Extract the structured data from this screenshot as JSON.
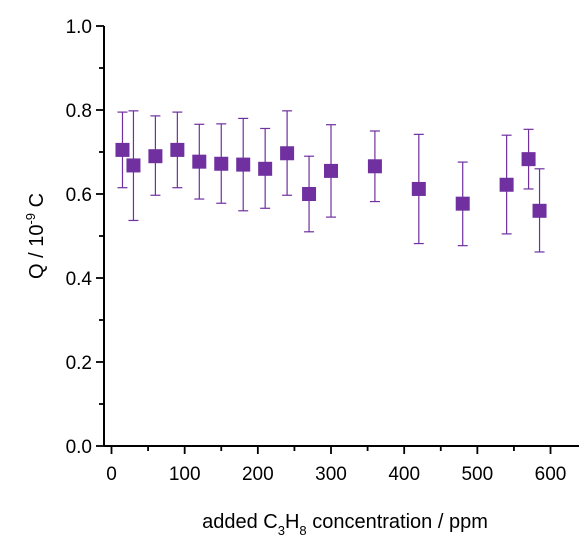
{
  "chart_data": {
    "type": "scatter",
    "xlim": [
      -10,
      650
    ],
    "ylim": [
      0.0,
      1.0
    ],
    "x_ticks": [
      0,
      100,
      200,
      300,
      400,
      500,
      600
    ],
    "y_ticks": [
      0.0,
      0.2,
      0.4,
      0.6,
      0.8,
      1.0
    ],
    "x_tick_labels": [
      "0",
      "100",
      "200",
      "300",
      "400",
      "500",
      "600"
    ],
    "y_tick_labels": [
      "0.0",
      "0.2",
      "0.4",
      "0.6",
      "0.8",
      "1.0"
    ],
    "xlabel": {
      "prefix": "added C",
      "sub1": "3",
      "mid": "H",
      "sub2": "8",
      "suffix": " concentration / ppm"
    },
    "ylabel": {
      "prefix": "Q / 10",
      "sup": "-9",
      "suffix": " C"
    },
    "marker_color": "#7030a0",
    "grid": false,
    "series": [
      {
        "points": [
          {
            "x": 15,
            "y": 0.705,
            "err_low": 0.615,
            "err_high": 0.795
          },
          {
            "x": 30,
            "y": 0.668,
            "err_low": 0.537,
            "err_high": 0.798
          },
          {
            "x": 60,
            "y": 0.69,
            "err_low": 0.597,
            "err_high": 0.786
          },
          {
            "x": 90,
            "y": 0.705,
            "err_low": 0.615,
            "err_high": 0.795
          },
          {
            "x": 120,
            "y": 0.677,
            "err_low": 0.588,
            "err_high": 0.766
          },
          {
            "x": 150,
            "y": 0.672,
            "err_low": 0.578,
            "err_high": 0.767
          },
          {
            "x": 180,
            "y": 0.67,
            "err_low": 0.56,
            "err_high": 0.78
          },
          {
            "x": 210,
            "y": 0.66,
            "err_low": 0.566,
            "err_high": 0.756
          },
          {
            "x": 240,
            "y": 0.697,
            "err_low": 0.597,
            "err_high": 0.798
          },
          {
            "x": 270,
            "y": 0.6,
            "err_low": 0.51,
            "err_high": 0.69
          },
          {
            "x": 300,
            "y": 0.655,
            "err_low": 0.545,
            "err_high": 0.765
          },
          {
            "x": 360,
            "y": 0.666,
            "err_low": 0.582,
            "err_high": 0.75
          },
          {
            "x": 420,
            "y": 0.612,
            "err_low": 0.482,
            "err_high": 0.742
          },
          {
            "x": 480,
            "y": 0.577,
            "err_low": 0.477,
            "err_high": 0.676
          },
          {
            "x": 540,
            "y": 0.622,
            "err_low": 0.505,
            "err_high": 0.74
          },
          {
            "x": 570,
            "y": 0.683,
            "err_low": 0.612,
            "err_high": 0.754
          },
          {
            "x": 585,
            "y": 0.56,
            "err_low": 0.462,
            "err_high": 0.66
          }
        ]
      }
    ]
  }
}
